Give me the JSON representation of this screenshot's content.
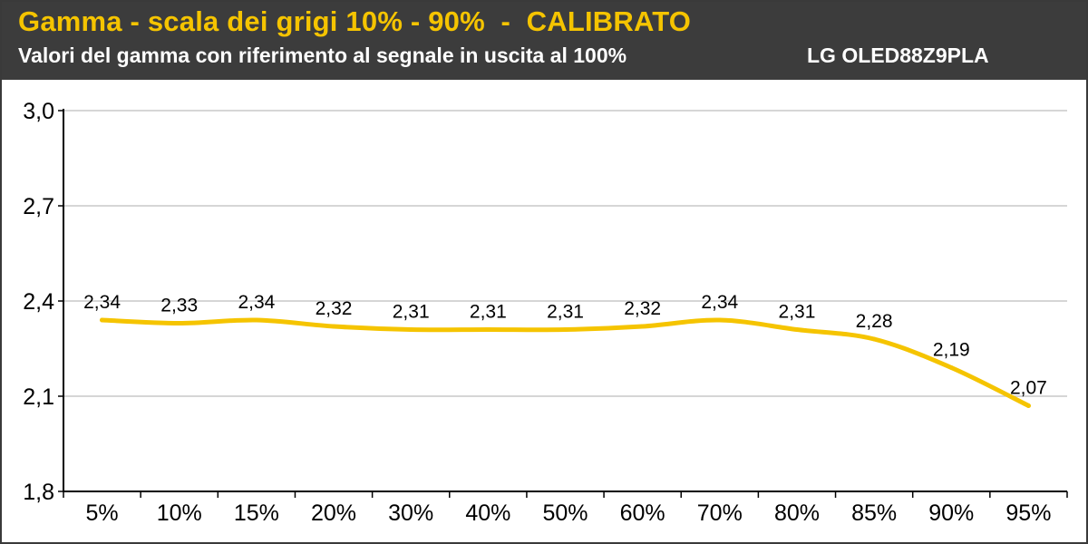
{
  "header": {
    "title": "Gamma - scala dei grigi 10% - 90%  -  CALIBRATO",
    "subtitle": "Valori del gamma con riferimento al segnale in uscita al 100%",
    "model": "LG OLED88Z9PLA"
  },
  "colors": {
    "header_background": "#3c3c3c",
    "title": "#f5c400",
    "line": "#f5c400",
    "gridline": "#c8c8c8"
  },
  "chart_data": {
    "type": "line",
    "title": "Gamma - scala dei grigi 10% - 90%  -  CALIBRATO",
    "subtitle": "Valori del gamma con riferimento al segnale in uscita al 100%",
    "xlabel": "",
    "ylabel": "",
    "categories": [
      "5%",
      "10%",
      "15%",
      "20%",
      "30%",
      "40%",
      "50%",
      "60%",
      "70%",
      "80%",
      "85%",
      "90%",
      "95%"
    ],
    "values": [
      2.34,
      2.33,
      2.34,
      2.32,
      2.31,
      2.31,
      2.31,
      2.32,
      2.34,
      2.31,
      2.28,
      2.19,
      2.07
    ],
    "value_labels": [
      "2,34",
      "2,33",
      "2,34",
      "2,32",
      "2,31",
      "2,31",
      "2,31",
      "2,32",
      "2,34",
      "2,31",
      "2,28",
      "2,19",
      "2,07"
    ],
    "y_ticks": [
      1.8,
      2.1,
      2.4,
      2.7,
      3.0
    ],
    "y_tick_labels": [
      "1,8",
      "2,1",
      "2,4",
      "2,7",
      "3,0"
    ],
    "ylim": [
      1.8,
      3.0
    ],
    "grid": true,
    "smooth": true,
    "legend": "none"
  }
}
